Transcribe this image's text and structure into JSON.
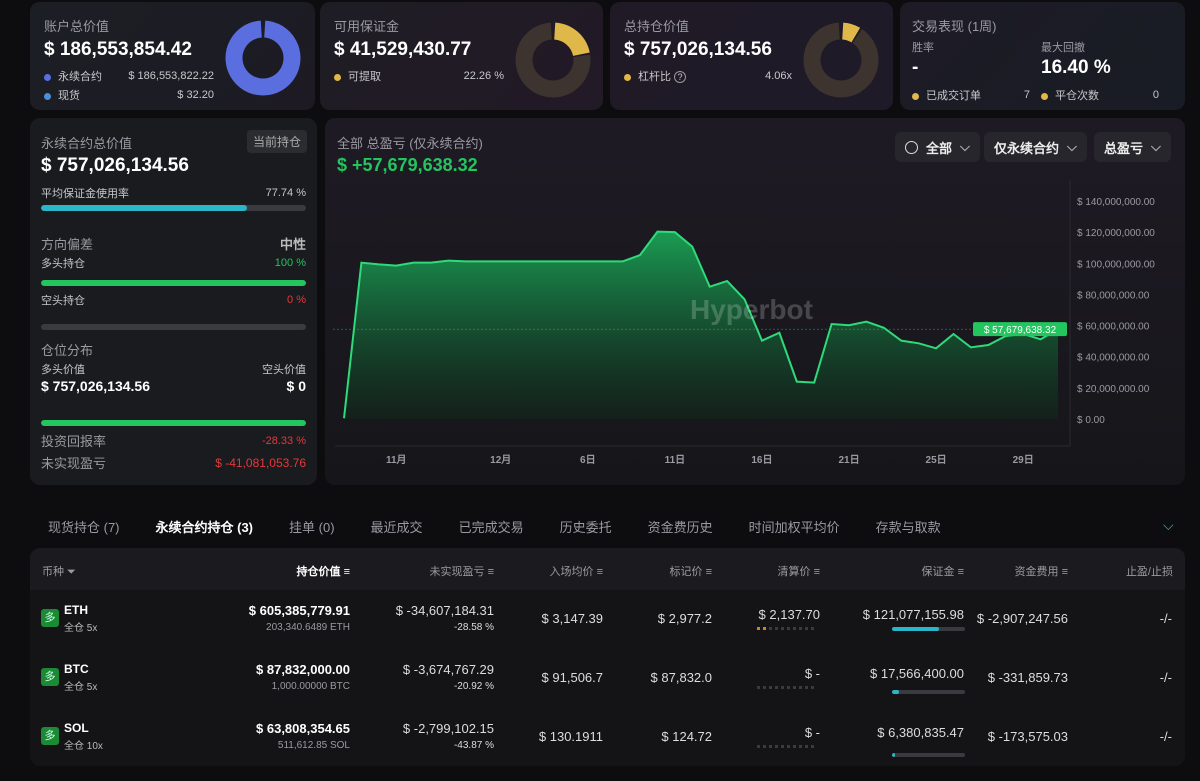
{
  "colors": {
    "accent_green": "#22c55e",
    "loss_red": "#e5383b",
    "perp_blue": "#5b6ee0",
    "spot_blue": "#4a90d9",
    "gold": "#e0b84a",
    "teal": "#2bb5c8"
  },
  "cards": {
    "account": {
      "title": "账户总价值",
      "value": "$ 186,553,854.42",
      "items": [
        {
          "label": "永续合约",
          "value": "$ 186,553,822.22"
        },
        {
          "label": "现货",
          "value": "$ 32.20"
        }
      ],
      "donut_fraction": 0.9999
    },
    "margin": {
      "title": "可用保证金",
      "value": "$ 41,529,430.77",
      "items": [
        {
          "label": "可提取",
          "value": "22.26 %"
        }
      ],
      "donut_fraction": 0.2226
    },
    "position": {
      "title": "总持仓价值",
      "value": "$ 757,026,134.56",
      "items": [
        {
          "label": "杠杆比",
          "value": "4.06x"
        }
      ],
      "donut_fraction": 0.09
    },
    "performance": {
      "title": "交易表现 (1周)",
      "win_rate_label": "胜率",
      "win_rate": "-",
      "drawdown_label": "最大回撤",
      "drawdown": "16.40 %",
      "items": [
        {
          "label": "已成交订单",
          "value": "7"
        },
        {
          "label": "平仓次数",
          "value": "0"
        }
      ]
    }
  },
  "left": {
    "title": "永续合约总价值",
    "badge": "当前持仓",
    "value": "$ 757,026,134.56",
    "margin_usage_label": "平均保证金使用率",
    "margin_usage": "77.74 %",
    "margin_usage_fraction": 0.7774,
    "bias_label": "方向偏差",
    "bias_value": "中性",
    "long_label": "多头持仓",
    "long_pct": "100 %",
    "long_fraction": 1,
    "short_label": "空头持仓",
    "short_pct": "0 %",
    "short_fraction": 0,
    "dist_label": "仓位分布",
    "long_value_label": "多头价值",
    "short_value_label": "空头价值",
    "long_value": "$ 757,026,134.56",
    "short_value": "$ 0",
    "dist_fraction": 1,
    "roi_label": "投资回报率",
    "roi": "-28.33 %",
    "upnl_label": "未实现盈亏",
    "upnl": "$ -41,081,053.76"
  },
  "chart_panel": {
    "title": "全部 总盈亏 (仅永续合约)",
    "value": "$ +57,679,638.32",
    "filters": [
      "全部",
      "仅永续合约",
      "总盈亏"
    ],
    "watermark": "Hyperbot"
  },
  "chart_data": {
    "type": "area",
    "ylim": [
      0,
      140000000
    ],
    "y_ticks": [
      "$ 0.00",
      "$ 20,000,000.00",
      "$ 40,000,000.00",
      "$ 60,000,000.00",
      "$ 80,000,000.00",
      "$ 100,000,000.00",
      "$ 120,000,000.00",
      "$ 140,000,000.00"
    ],
    "x_labels": [
      "",
      "",
      "",
      "11月",
      "",
      "",
      "",
      "",
      "",
      "12月",
      "",
      "",
      "",
      "",
      "6日",
      "",
      "",
      "",
      "",
      "11日",
      "",
      "",
      "",
      "",
      "16日",
      "",
      "",
      "",
      "",
      "21日",
      "",
      "",
      "",
      "",
      "25日",
      "",
      "",
      "",
      "",
      "29日",
      "",
      ""
    ],
    "values": [
      500000,
      100400000,
      99300000,
      98500000,
      100400000,
      100400000,
      101700000,
      101200000,
      101200000,
      101200000,
      101200000,
      101200000,
      101200000,
      101200000,
      101200000,
      101200000,
      101200000,
      105300000,
      120300000,
      120000000,
      110700000,
      85000000,
      88600000,
      76900000,
      50300000,
      55400000,
      24000000,
      23400000,
      61000000,
      60200000,
      62500000,
      58600000,
      50300000,
      48600000,
      45400000,
      54600000,
      46000000,
      47500000,
      53300000,
      54600000,
      51200000,
      57679638.32
    ],
    "last_label": "$ 57,679,638.32",
    "grid": false
  },
  "tabs": [
    {
      "label": "现货持仓 (7)"
    },
    {
      "label": "永续合约持仓 (3)",
      "active": true
    },
    {
      "label": "挂单 (0)"
    },
    {
      "label": "最近成交"
    },
    {
      "label": "已完成交易"
    },
    {
      "label": "历史委托"
    },
    {
      "label": "资金费历史"
    },
    {
      "label": "时间加权平均价"
    },
    {
      "label": "存款与取款"
    }
  ],
  "table": {
    "headers": [
      "币种",
      "持仓价值",
      "未实现盈亏",
      "入场均价",
      "标记价",
      "清算价",
      "保证金",
      "资金费用",
      "止盈/止损"
    ],
    "rows": [
      {
        "side": "多",
        "coin": "ETH",
        "mode": "全仓 5x",
        "value": "$ 605,385,779.91",
        "size": "203,340.6489 ETH",
        "pnl": "$ -34,607,184.31",
        "pnl_pct": "-28.58 %",
        "entry": "$ 3,147.39",
        "mark": "$ 2,977.2",
        "liq": "$ 2,137.70",
        "liq_risk": 0.2,
        "margin": "$ 121,077,155.98",
        "margin_fraction": 0.65,
        "funding": "$ -2,907,247.56",
        "tpsl": "-/-"
      },
      {
        "side": "多",
        "coin": "BTC",
        "mode": "全仓 5x",
        "value": "$ 87,832,000.00",
        "size": "1,000.00000 BTC",
        "pnl": "$ -3,674,767.29",
        "pnl_pct": "-20.92 %",
        "entry": "$ 91,506.7",
        "mark": "$ 87,832.0",
        "liq": "$ -",
        "liq_risk": 0,
        "margin": "$ 17,566,400.00",
        "margin_fraction": 0.1,
        "funding": "$ -331,859.73",
        "tpsl": "-/-"
      },
      {
        "side": "多",
        "coin": "SOL",
        "mode": "全仓 10x",
        "value": "$ 63,808,354.65",
        "size": "511,612.85 SOL",
        "pnl": "$ -2,799,102.15",
        "pnl_pct": "-43.87 %",
        "entry": "$ 130.1911",
        "mark": "$ 124.72",
        "liq": "$ -",
        "liq_risk": 0,
        "margin": "$ 6,380,835.47",
        "margin_fraction": 0.04,
        "funding": "$ -173,575.03",
        "tpsl": "-/-"
      }
    ]
  }
}
